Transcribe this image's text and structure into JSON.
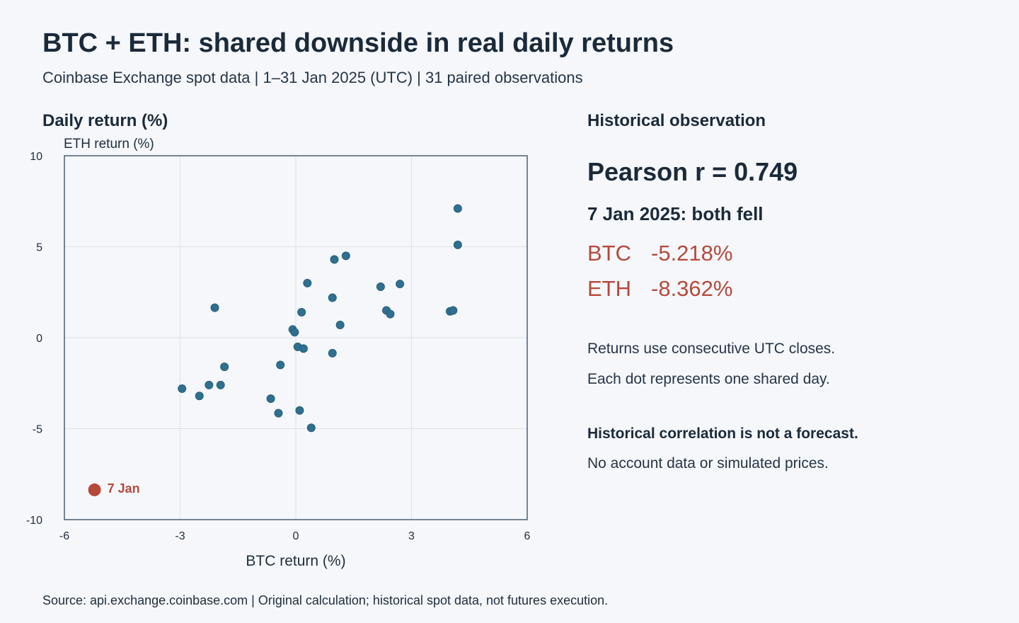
{
  "header": {
    "title": "BTC + ETH: shared downside in real daily returns",
    "subtitle": "Coinbase Exchange spot data | 1–31 Jan 2025 (UTC) | 31 paired observations"
  },
  "chart_heading": "Daily return (%)",
  "chart_data": {
    "type": "scatter",
    "xlabel": "BTC return (%)",
    "ylabel": "ETH return (%)",
    "xlim": [
      -6,
      6
    ],
    "ylim": [
      -10,
      10
    ],
    "x_ticks": [
      "-6",
      "-3",
      "0",
      "3",
      "6"
    ],
    "y_ticks": [
      "10",
      "5",
      "0",
      "-5",
      "-10"
    ],
    "x_tick_values": [
      -6,
      -3,
      0,
      3,
      6
    ],
    "y_tick_values": [
      10,
      5,
      0,
      -5,
      -10
    ],
    "grid": true,
    "series": [
      {
        "points": [
          {
            "x": 4.2,
            "y": 7.1
          },
          {
            "x": 4.2,
            "y": 5.1
          },
          {
            "x": 1.3,
            "y": 4.5
          },
          {
            "x": 1.0,
            "y": 4.3
          },
          {
            "x": 0.3,
            "y": 3.0
          },
          {
            "x": 2.2,
            "y": 2.8
          },
          {
            "x": 2.7,
            "y": 2.95
          },
          {
            "x": 0.95,
            "y": 2.2
          },
          {
            "x": -2.1,
            "y": 1.65
          },
          {
            "x": 0.15,
            "y": 1.4
          },
          {
            "x": 2.35,
            "y": 1.5
          },
          {
            "x": 2.45,
            "y": 1.3
          },
          {
            "x": 4.0,
            "y": 1.45
          },
          {
            "x": 4.08,
            "y": 1.5
          },
          {
            "x": 1.15,
            "y": 0.7
          },
          {
            "x": -0.08,
            "y": 0.45
          },
          {
            "x": -0.03,
            "y": 0.3
          },
          {
            "x": 0.05,
            "y": -0.5
          },
          {
            "x": 0.2,
            "y": -0.6
          },
          {
            "x": 0.95,
            "y": -0.85
          },
          {
            "x": -1.85,
            "y": -1.6
          },
          {
            "x": -0.4,
            "y": -1.5
          },
          {
            "x": -2.95,
            "y": -2.8
          },
          {
            "x": -2.25,
            "y": -2.6
          },
          {
            "x": -1.95,
            "y": -2.6
          },
          {
            "x": -2.5,
            "y": -3.2
          },
          {
            "x": -0.65,
            "y": -3.35
          },
          {
            "x": -0.45,
            "y": -4.15
          },
          {
            "x": 0.1,
            "y": -4.0
          },
          {
            "x": 0.4,
            "y": -4.95
          }
        ]
      },
      {
        "points": [
          {
            "x": -5.218,
            "y": -8.362,
            "label": "7 Jan"
          }
        ]
      }
    ],
    "colors": {
      "points": "#2f6f8f",
      "highlight": "#b5493c",
      "grid": "#dde2e8",
      "frame": "#4a5e73"
    }
  },
  "panel": {
    "heading": "Historical observation",
    "pearson": "Pearson r = 0.749",
    "highlight_title": "7 Jan 2025: both fell",
    "returns": [
      {
        "asset": "BTC",
        "value": "-5.218%"
      },
      {
        "asset": "ETH",
        "value": "-8.362%"
      }
    ],
    "notes": [
      "Returns use consecutive UTC closes.",
      "Each dot represents one shared day."
    ],
    "disclaimer_bold": "Historical correlation is not a forecast.",
    "disclaimer": "No account data or simulated prices."
  },
  "source": "Source: api.exchange.coinbase.com | Original calculation; historical spot data, not futures execution."
}
